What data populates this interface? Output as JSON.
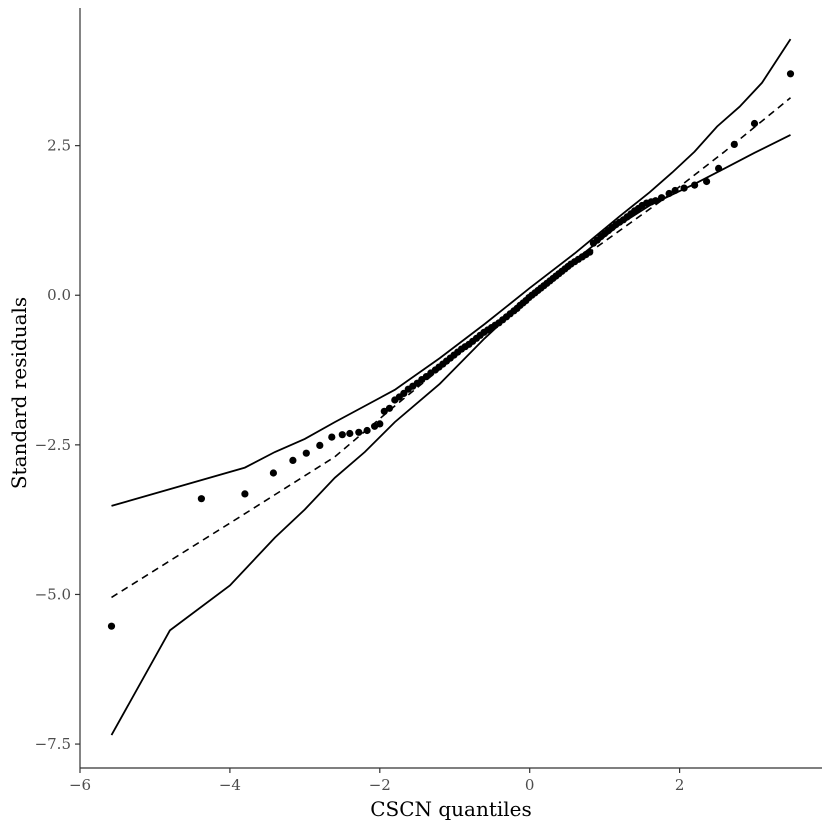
{
  "chart_data": {
    "type": "scatter",
    "title": "",
    "xlabel": "CSCN quantiles",
    "ylabel": "Standard residuals",
    "xlim": [
      -6.0,
      3.9
    ],
    "ylim": [
      -7.9,
      4.8
    ],
    "x_ticks": [
      {
        "value": -6,
        "label": "−6"
      },
      {
        "value": -4,
        "label": "−4"
      },
      {
        "value": -2,
        "label": "−2"
      },
      {
        "value": 0,
        "label": "0"
      },
      {
        "value": 2,
        "label": "2"
      }
    ],
    "y_ticks": [
      {
        "value": -7.5,
        "label": "−7.5"
      },
      {
        "value": -5.0,
        "label": "−5.0"
      },
      {
        "value": -2.5,
        "label": "−2.5"
      },
      {
        "value": 0.0,
        "label": "0.0"
      },
      {
        "value": 2.5,
        "label": "2.5"
      }
    ],
    "grid": false,
    "legend": "none",
    "colors": {
      "points": "#000000",
      "lines": "#000000",
      "axis": "#333333",
      "tick_text": "#4d4d4d"
    },
    "points": [
      [
        -5.58,
        -5.53
      ],
      [
        -4.38,
        -3.4
      ],
      [
        -3.8,
        -3.32
      ],
      [
        -3.42,
        -2.97
      ],
      [
        -3.16,
        -2.76
      ],
      [
        -2.98,
        -2.64
      ],
      [
        -2.8,
        -2.51
      ],
      [
        -2.64,
        -2.37
      ],
      [
        -2.5,
        -2.33
      ],
      [
        -2.4,
        -2.31
      ],
      [
        -2.28,
        -2.29
      ],
      [
        -2.17,
        -2.26
      ],
      [
        -2.07,
        -2.19
      ],
      [
        -2.0,
        -2.15
      ],
      [
        -1.94,
        -1.94
      ],
      [
        -1.87,
        -1.89
      ],
      [
        -1.8,
        -1.75
      ],
      [
        -1.74,
        -1.7
      ],
      [
        -1.68,
        -1.64
      ],
      [
        -1.62,
        -1.57
      ],
      [
        -1.56,
        -1.52
      ],
      [
        -1.5,
        -1.47
      ],
      [
        -1.44,
        -1.41
      ],
      [
        -1.38,
        -1.36
      ],
      [
        -1.32,
        -1.3
      ],
      [
        -1.26,
        -1.25
      ],
      [
        -1.21,
        -1.2
      ],
      [
        -1.16,
        -1.15
      ],
      [
        -1.11,
        -1.1
      ],
      [
        -1.06,
        -1.05
      ],
      [
        -1.01,
        -1.0
      ],
      [
        -0.96,
        -0.95
      ],
      [
        -0.91,
        -0.9
      ],
      [
        -0.86,
        -0.86
      ],
      [
        -0.81,
        -0.82
      ],
      [
        -0.76,
        -0.77
      ],
      [
        -0.71,
        -0.72
      ],
      [
        -0.66,
        -0.67
      ],
      [
        -0.61,
        -0.62
      ],
      [
        -0.56,
        -0.58
      ],
      [
        -0.51,
        -0.54
      ],
      [
        -0.46,
        -0.5
      ],
      [
        -0.41,
        -0.46
      ],
      [
        -0.36,
        -0.41
      ],
      [
        -0.31,
        -0.36
      ],
      [
        -0.26,
        -0.31
      ],
      [
        -0.21,
        -0.26
      ],
      [
        -0.17,
        -0.22
      ],
      [
        -0.13,
        -0.17
      ],
      [
        -0.09,
        -0.13
      ],
      [
        -0.05,
        -0.09
      ],
      [
        -0.01,
        -0.04
      ],
      [
        0.03,
        0.0
      ],
      [
        0.07,
        0.04
      ],
      [
        0.11,
        0.08
      ],
      [
        0.15,
        0.12
      ],
      [
        0.19,
        0.16
      ],
      [
        0.23,
        0.2
      ],
      [
        0.27,
        0.24
      ],
      [
        0.31,
        0.28
      ],
      [
        0.35,
        0.32
      ],
      [
        0.39,
        0.36
      ],
      [
        0.43,
        0.4
      ],
      [
        0.47,
        0.44
      ],
      [
        0.51,
        0.48
      ],
      [
        0.55,
        0.52
      ],
      [
        0.6,
        0.56
      ],
      [
        0.65,
        0.6
      ],
      [
        0.7,
        0.64
      ],
      [
        0.75,
        0.68
      ],
      [
        0.8,
        0.72
      ],
      [
        0.85,
        0.87
      ],
      [
        0.9,
        0.92
      ],
      [
        0.95,
        0.98
      ],
      [
        1.0,
        1.03
      ],
      [
        1.05,
        1.08
      ],
      [
        1.1,
        1.13
      ],
      [
        1.15,
        1.18
      ],
      [
        1.2,
        1.22
      ],
      [
        1.25,
        1.26
      ],
      [
        1.3,
        1.31
      ],
      [
        1.35,
        1.36
      ],
      [
        1.4,
        1.41
      ],
      [
        1.45,
        1.45
      ],
      [
        1.5,
        1.5
      ],
      [
        1.56,
        1.54
      ],
      [
        1.62,
        1.56
      ],
      [
        1.68,
        1.58
      ],
      [
        1.76,
        1.63
      ],
      [
        1.86,
        1.7
      ],
      [
        1.94,
        1.75
      ],
      [
        2.06,
        1.79
      ],
      [
        2.2,
        1.84
      ],
      [
        2.36,
        1.9
      ],
      [
        2.52,
        2.12
      ],
      [
        2.73,
        2.52
      ],
      [
        3.0,
        2.87
      ],
      [
        3.48,
        3.7
      ]
    ],
    "reference_line": [
      [
        -5.58,
        -5.05
      ],
      [
        -3.8,
        -3.65
      ],
      [
        -2.6,
        -2.7
      ],
      [
        -1.8,
        -1.85
      ],
      [
        0.0,
        0.0
      ],
      [
        1.8,
        1.62
      ],
      [
        2.6,
        2.4
      ],
      [
        3.48,
        3.3
      ]
    ],
    "upper_band": [
      [
        -5.58,
        -3.52
      ],
      [
        -3.8,
        -2.88
      ],
      [
        -3.4,
        -2.62
      ],
      [
        -3.0,
        -2.4
      ],
      [
        -2.6,
        -2.12
      ],
      [
        -2.2,
        -1.85
      ],
      [
        -1.8,
        -1.58
      ],
      [
        -1.2,
        -1.05
      ],
      [
        -0.6,
        -0.48
      ],
      [
        0.0,
        0.12
      ],
      [
        0.6,
        0.7
      ],
      [
        1.2,
        1.32
      ],
      [
        1.6,
        1.72
      ],
      [
        1.9,
        2.05
      ],
      [
        2.2,
        2.4
      ],
      [
        2.5,
        2.82
      ],
      [
        2.8,
        3.15
      ],
      [
        3.1,
        3.55
      ],
      [
        3.48,
        4.28
      ]
    ],
    "lower_band": [
      [
        -5.58,
        -7.35
      ],
      [
        -4.8,
        -5.6
      ],
      [
        -4.0,
        -4.85
      ],
      [
        -3.4,
        -4.05
      ],
      [
        -3.0,
        -3.58
      ],
      [
        -2.6,
        -3.05
      ],
      [
        -2.2,
        -2.62
      ],
      [
        -1.8,
        -2.12
      ],
      [
        -1.2,
        -1.48
      ],
      [
        -0.6,
        -0.72
      ],
      [
        0.0,
        -0.02
      ],
      [
        0.6,
        0.58
      ],
      [
        1.2,
        1.18
      ],
      [
        1.6,
        1.5
      ],
      [
        1.9,
        1.68
      ],
      [
        2.2,
        1.86
      ],
      [
        2.6,
        2.12
      ],
      [
        3.0,
        2.38
      ],
      [
        3.48,
        2.68
      ]
    ]
  }
}
